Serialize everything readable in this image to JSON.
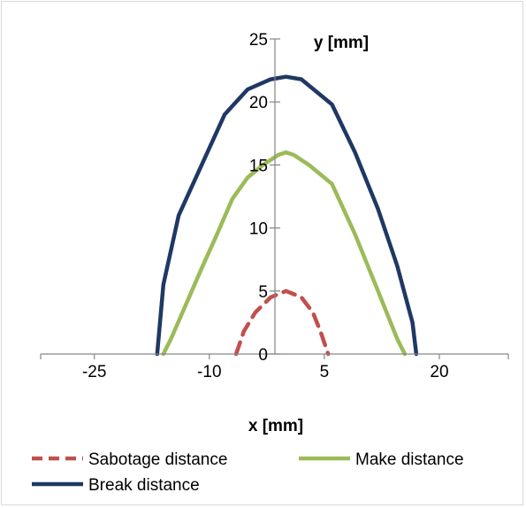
{
  "chart_data": {
    "type": "line",
    "xlabel": "x [mm]",
    "ylabel": "y [mm]",
    "xlim": [
      -32,
      29
    ],
    "ylim": [
      0,
      25
    ],
    "x_ticks": [
      -25,
      -10,
      5,
      20
    ],
    "y_ticks": [
      0,
      5,
      10,
      15,
      20,
      25
    ],
    "grid": false,
    "legend_position": "bottom",
    "series": [
      {
        "name": "Sabotage distance",
        "color": "#c0504d",
        "dash": "dashed",
        "x": [
          -6.5,
          -5.5,
          -4.0,
          -2.0,
          0,
          2.0,
          3.5,
          4.5,
          5.5
        ],
        "y": [
          0,
          1.8,
          3.3,
          4.5,
          5.0,
          4.5,
          3.3,
          1.8,
          0
        ]
      },
      {
        "name": "Make distance",
        "color": "#9bbb59",
        "dash": "solid",
        "x": [
          -16.0,
          -15.0,
          -13.0,
          -11.0,
          -9.0,
          -7.0,
          -5.0,
          -3.0,
          -1.0,
          0,
          1.0,
          3.0,
          6.0,
          9.0,
          12.0,
          14.5,
          15.5
        ],
        "y": [
          0,
          1.2,
          4.0,
          6.8,
          9.5,
          12.3,
          14.0,
          15.0,
          15.8,
          16.0,
          15.8,
          15.0,
          13.5,
          9.5,
          5.0,
          1.2,
          0
        ]
      },
      {
        "name": "Break distance",
        "color": "#1f3864",
        "dash": "solid",
        "x": [
          -16.8,
          -16.0,
          -14.0,
          -11.0,
          -8.0,
          -5.0,
          -2.0,
          0,
          2.0,
          6.0,
          9.0,
          12.0,
          14.5,
          16.5,
          17.0
        ],
        "y": [
          0,
          5.5,
          11.0,
          15.0,
          19.0,
          21.0,
          21.8,
          22.0,
          21.8,
          19.8,
          16.0,
          11.5,
          7.0,
          2.5,
          0
        ]
      }
    ]
  }
}
